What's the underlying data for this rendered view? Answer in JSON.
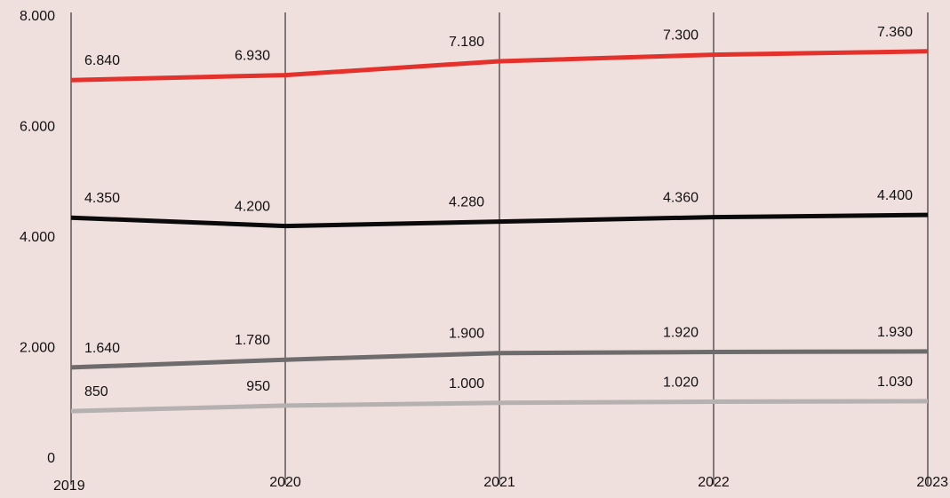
{
  "chart_data": {
    "type": "line",
    "title": "",
    "xlabel": "",
    "ylabel": "",
    "x": [
      "2019",
      "2020",
      "2021",
      "2022",
      "2023"
    ],
    "y_ticks": [
      "0",
      "2.000",
      "4.000",
      "6.000",
      "8.000"
    ],
    "ylim": [
      0,
      8000
    ],
    "grid": "vertical lines at each year",
    "legend": "none",
    "series": [
      {
        "color": "#e4312b",
        "values": [
          6840,
          6930,
          7180,
          7300,
          7360
        ],
        "labels": [
          "6.840",
          "6.930",
          "7.180",
          "7.300",
          "7.360"
        ]
      },
      {
        "color": "#0a0a0a",
        "values": [
          4350,
          4200,
          4280,
          4360,
          4400
        ],
        "labels": [
          "4.350",
          "4.200",
          "4.280",
          "4.360",
          "4.400"
        ]
      },
      {
        "color": "#6d6b6b",
        "values": [
          1640,
          1780,
          1900,
          1920,
          1930
        ],
        "labels": [
          "1.640",
          "1.780",
          "1.900",
          "1.920",
          "1.930"
        ]
      },
      {
        "color": "#b4b1b0",
        "values": [
          850,
          950,
          1000,
          1020,
          1030
        ],
        "labels": [
          "850",
          "950",
          "1.000",
          "1.020",
          "1.030"
        ]
      }
    ]
  }
}
